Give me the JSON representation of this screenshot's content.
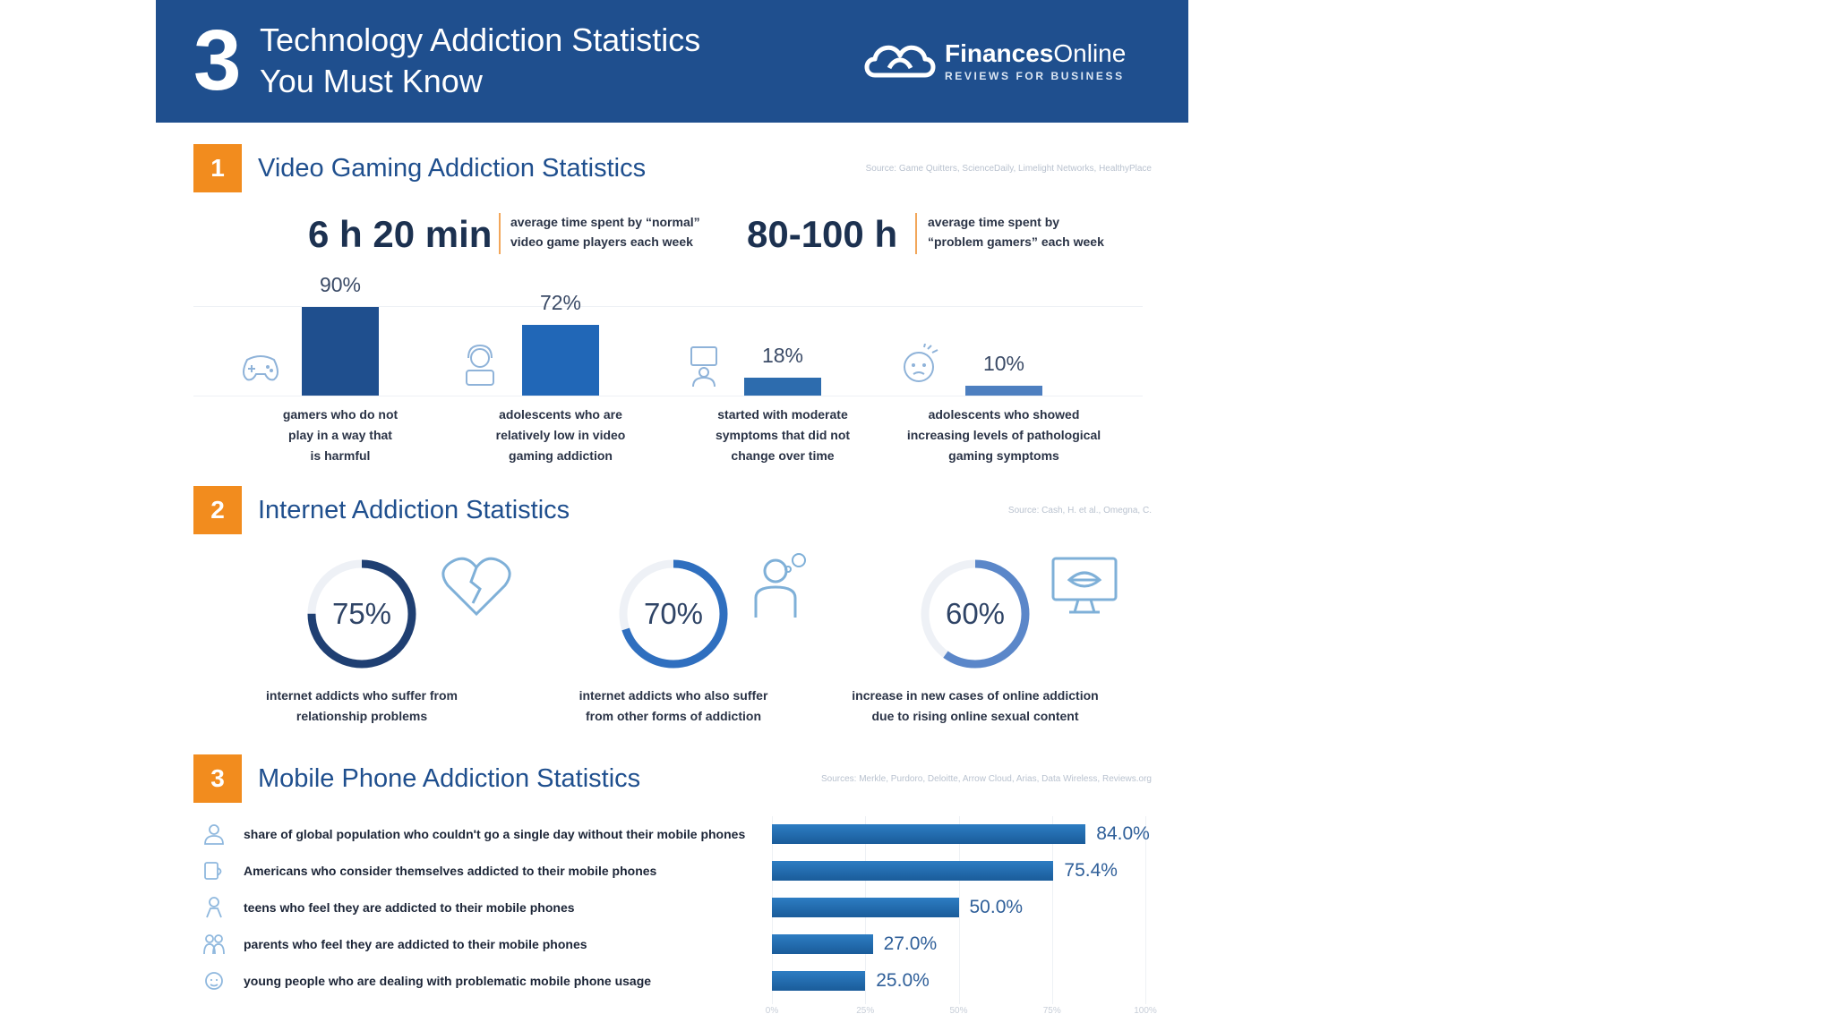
{
  "header": {
    "number": "3",
    "title_line1": "Technology Addiction Statistics",
    "title_line2": "You Must Know",
    "brand_bold": "Finances",
    "brand_light": "Online",
    "brand_tag": "REVIEWS FOR BUSINESS"
  },
  "section1": {
    "number": "1",
    "title": "Video Gaming Addiction Statistics",
    "source": "Source: Game Quitters, ScienceDaily, Limelight Networks, HealthyPlace",
    "stat1_value": "6 h 20 min",
    "stat1_desc_line1": "average time spent by “normal”",
    "stat1_desc_line2": "video game players each week",
    "stat2_value": "80-100 h",
    "stat2_desc_line1": "average time spent by",
    "stat2_desc_line2": "“problem gamers” each week"
  },
  "section2": {
    "number": "2",
    "title": "Internet Addiction Statistics",
    "source": "Source: Cash, H. et al., Omegna, C."
  },
  "section3": {
    "number": "3",
    "title": "Mobile Phone Addiction Statistics",
    "source": "Sources: Merkle, Purdoro, Deloitte, Arrow Cloud, Arias, Data Wireless, Reviews.org"
  },
  "chart_data": [
    {
      "type": "bar",
      "title": "Video Gaming Addiction Statistics",
      "categories": [
        "gamers who do not play in a way that is harmful",
        "adolescents who are relatively low in video gaming addiction",
        "started with moderate symptoms that did not change over time",
        "adolescents who showed increasing levels of pathological gaming symptoms"
      ],
      "values": [
        90,
        72,
        18,
        10
      ],
      "labels": [
        "90%",
        "72%",
        "18%",
        "10%"
      ],
      "desc_lines": [
        [
          "gamers who do not",
          "play in a way that",
          "is harmful"
        ],
        [
          "adolescents who are",
          "relatively low in video",
          "gaming addiction"
        ],
        [
          "started with moderate",
          "symptoms that did not",
          "change over time"
        ],
        [
          "adolescents who showed",
          "increasing levels of pathological",
          "gaming symptoms"
        ]
      ],
      "colors": [
        "#1f4f8e",
        "#2167b7",
        "#2d6cae",
        "#4d7fc0"
      ],
      "ylim": [
        0,
        100
      ]
    },
    {
      "type": "pie",
      "title": "Internet Addiction Statistics",
      "values": [
        75,
        70,
        60
      ],
      "labels": [
        "75%",
        "70%",
        "60%"
      ],
      "desc_lines": [
        [
          "internet addicts who suffer from",
          "relationship problems"
        ],
        [
          "internet addicts who also suffer",
          "from other forms of addiction"
        ],
        [
          "increase in new cases of online addiction",
          "due to rising online sexual content"
        ]
      ],
      "colors": [
        "#1f3f72",
        "#2f6fbf",
        "#5b87c9"
      ]
    },
    {
      "type": "bar",
      "orientation": "horizontal",
      "title": "Mobile Phone Addiction Statistics",
      "categories": [
        "share of global population who couldn't go a single day without their mobile phones",
        "Americans who consider themselves addicted to their mobile phones",
        "teens who feel they are addicted to their mobile phones",
        "parents who feel they are addicted to their mobile phones",
        "young people who are dealing with problematic mobile phone usage"
      ],
      "values": [
        84.0,
        75.4,
        50.0,
        27.0,
        25.0
      ],
      "labels": [
        "84.0%",
        "75.4%",
        "50.0%",
        "27.0%",
        "25.0%"
      ],
      "xticks": [
        "0%",
        "25%",
        "50%",
        "75%",
        "100%"
      ],
      "xlim": [
        0,
        100
      ]
    }
  ]
}
